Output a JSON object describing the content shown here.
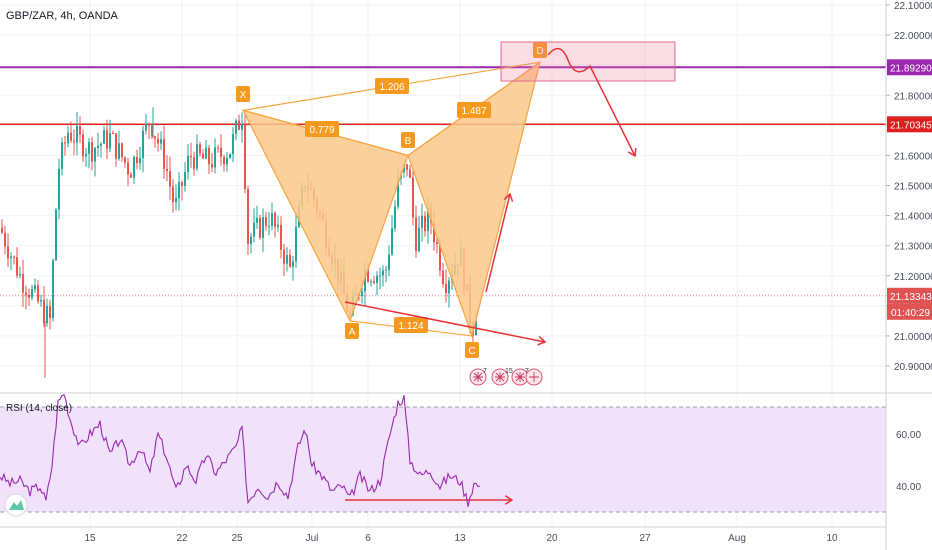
{
  "symbol": "GBP/ZAR, 4h, OANDA",
  "colors": {
    "up": "#26a69a",
    "down": "#ef5350",
    "pattern": "#f7a440",
    "pattern_fill": "#fbc889",
    "level_purple": "#9c27b0",
    "level_red": "#e02020",
    "rsi_line": "#9c27b0",
    "rsi_band": "#f0e2fb",
    "arrow": "#e8333a"
  },
  "chart_data": {
    "type": "candlestick",
    "price_axis": {
      "ticks": [
        "22.10000",
        "22.00000",
        "21.90000",
        "21.80000",
        "21.70000",
        "21.60000",
        "21.50000",
        "21.40000",
        "21.30000",
        "21.20000",
        "21.10000",
        "21.00000",
        "20.90000"
      ],
      "range": [
        20.84,
        22.12
      ]
    },
    "time_axis": {
      "ticks": [
        "15",
        "22",
        "25",
        "Jul",
        "6",
        "13",
        "20",
        "27",
        "Aug",
        "10"
      ]
    },
    "levels": [
      {
        "name": "resistance-purple",
        "price": 21.8929,
        "label": "21.89290"
      },
      {
        "name": "resistance-red",
        "price": 21.70345,
        "label": "21.70345"
      },
      {
        "name": "current-price",
        "price": 21.13343,
        "label": "21.13343"
      }
    ],
    "countdown": "01:40:29",
    "harmonic_pattern": {
      "points": [
        {
          "label": "X",
          "price": 21.75
        },
        {
          "label": "A",
          "price": 21.05
        },
        {
          "label": "B",
          "price": 21.6
        },
        {
          "label": "C",
          "price": 21.0
        },
        {
          "label": "D",
          "price": 21.91
        }
      ],
      "ratios": [
        "0.779",
        "1.206",
        "1.487",
        "1.124"
      ]
    },
    "rsi": {
      "label": "RSI (14, close)",
      "ticks": [
        "60.00",
        "40.00"
      ],
      "range": [
        24,
        78
      ],
      "band": [
        30,
        70
      ]
    },
    "event_icons": [
      "7",
      "15",
      "7"
    ]
  }
}
